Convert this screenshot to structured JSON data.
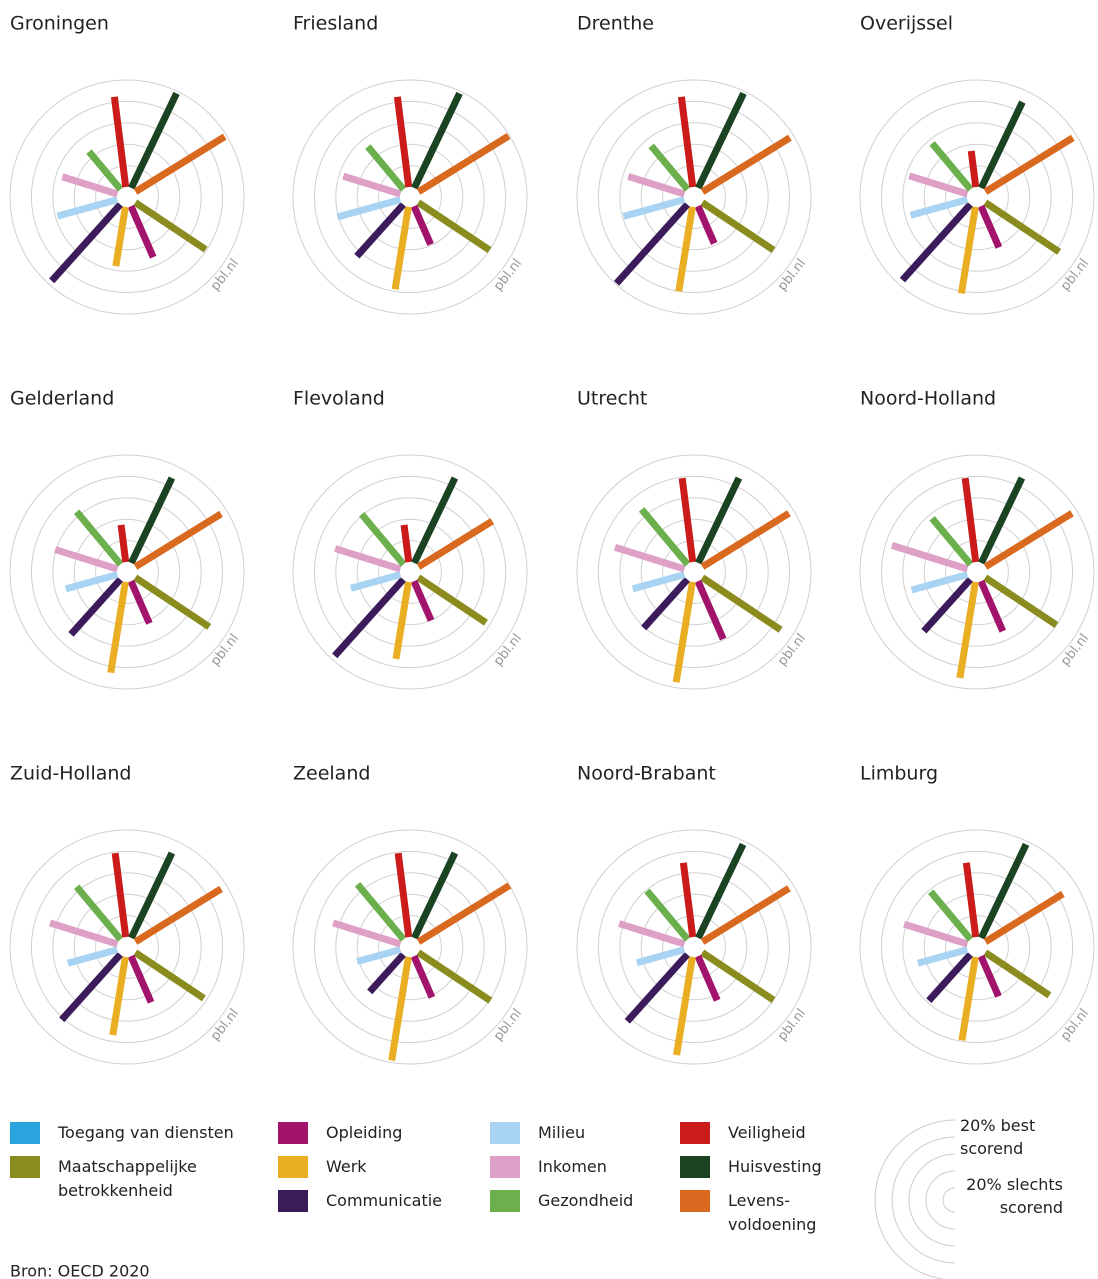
{
  "chart_data": [
    {
      "type": "radial-bar",
      "title": "Groningen",
      "values": [
        null,
        79,
        52,
        56,
        96,
        58,
        54,
        46,
        85,
        98,
        98
      ],
      "rlim": [
        0,
        100
      ],
      "rticks": [
        20,
        40,
        60,
        80,
        100
      ]
    },
    {
      "type": "radial-bar",
      "title": "Friesland",
      "values": [
        null,
        80,
        39,
        78,
        65,
        61,
        56,
        52,
        85,
        98,
        99
      ],
      "rlim": [
        0,
        100
      ],
      "rticks": [
        20,
        40,
        60,
        80,
        100
      ]
    },
    {
      "type": "radial-bar",
      "title": "Drenthe",
      "values": [
        null,
        80,
        38,
        80,
        99,
        59,
        55,
        53,
        85,
        98,
        96
      ],
      "rlim": [
        0,
        100
      ],
      "rticks": [
        20,
        40,
        60,
        80,
        100
      ]
    },
    {
      "type": "radial-bar",
      "title": "Overijssel",
      "values": [
        null,
        83,
        42,
        82,
        95,
        55,
        57,
        56,
        34,
        89,
        96
      ],
      "rlim": [
        0,
        100
      ],
      "rticks": [
        20,
        40,
        60,
        80,
        100
      ]
    },
    {
      "type": "radial-bar",
      "title": "Gelderland",
      "values": [
        null,
        83,
        43,
        86,
        69,
        50,
        61,
        64,
        35,
        88,
        94
      ],
      "rlim": [
        0,
        100
      ],
      "rticks": [
        20,
        40,
        60,
        80,
        100
      ]
    },
    {
      "type": "radial-bar",
      "title": "Flevoland",
      "values": [
        null,
        76,
        40,
        73,
        96,
        48,
        64,
        61,
        35,
        88,
        81
      ],
      "rlim": [
        0,
        100
      ],
      "rticks": [
        20,
        40,
        60,
        80,
        100
      ]
    },
    {
      "type": "radial-bar",
      "title": "Utrecht",
      "values": [
        null,
        88,
        59,
        95,
        61,
        50,
        68,
        67,
        79,
        88,
        95
      ],
      "rlim": [
        0,
        100
      ],
      "rticks": [
        20,
        40,
        60,
        80,
        100
      ]
    },
    {
      "type": "radial-bar",
      "title": "Noord-Holland",
      "values": [
        null,
        80,
        51,
        91,
        65,
        54,
        74,
        56,
        79,
        88,
        95
      ],
      "rlim": [
        0,
        100
      ],
      "rticks": [
        20,
        40,
        60,
        80,
        100
      ]
    },
    {
      "type": "radial-bar",
      "title": "Zuid-Holland",
      "values": [
        null,
        77,
        47,
        74,
        82,
        48,
        66,
        64,
        79,
        88,
        94
      ],
      "rlim": [
        0,
        100
      ],
      "rticks": [
        20,
        40,
        60,
        80,
        100
      ]
    },
    {
      "type": "radial-bar",
      "title": "Zeeland",
      "values": [
        null,
        81,
        42,
        98,
        47,
        42,
        66,
        67,
        79,
        88,
        100
      ],
      "rlim": [
        0,
        100
      ],
      "rticks": [
        20,
        40,
        60,
        80,
        100
      ]
    },
    {
      "type": "radial-bar",
      "title": "Noord-Brabant",
      "values": [
        null,
        80,
        45,
        93,
        84,
        46,
        64,
        59,
        70,
        97,
        95
      ],
      "rlim": [
        0,
        100
      ],
      "rticks": [
        20,
        40,
        60,
        80,
        100
      ]
    },
    {
      "type": "radial-bar",
      "title": "Limburg",
      "values": [
        null,
        72,
        41,
        79,
        58,
        48,
        62,
        58,
        70,
        97,
        85
      ],
      "rlim": [
        0,
        100
      ],
      "rticks": [
        20,
        40,
        60,
        80,
        100
      ]
    }
  ],
  "legend": [
    {
      "name": "Toegang van diensten",
      "color": "#2aa3de"
    },
    {
      "name": "Maatschappelijke\nbetrokkenheid",
      "color": "#8a8c1f"
    },
    {
      "name": "Opleiding",
      "color": "#a2136c"
    },
    {
      "name": "Werk",
      "color": "#e9ae22"
    },
    {
      "name": "Communicatie",
      "color": "#3c1b5b"
    },
    {
      "name": "Milieu",
      "color": "#a9d3f2"
    },
    {
      "name": "Inkomen",
      "color": "#dea0c7"
    },
    {
      "name": "Gezondheid",
      "color": "#6bb04c"
    },
    {
      "name": "Veiligheid",
      "color": "#cc1b1b"
    },
    {
      "name": "Huisvesting",
      "color": "#1b4322"
    },
    {
      "name": "Levens-\nvoldoening",
      "color": "#d9691e"
    }
  ],
  "watermark": "pbl.nl",
  "key": {
    "best": "20% best scorend",
    "worst": "20% slechts\nscorend"
  },
  "source": "Bron: OECD 2020"
}
